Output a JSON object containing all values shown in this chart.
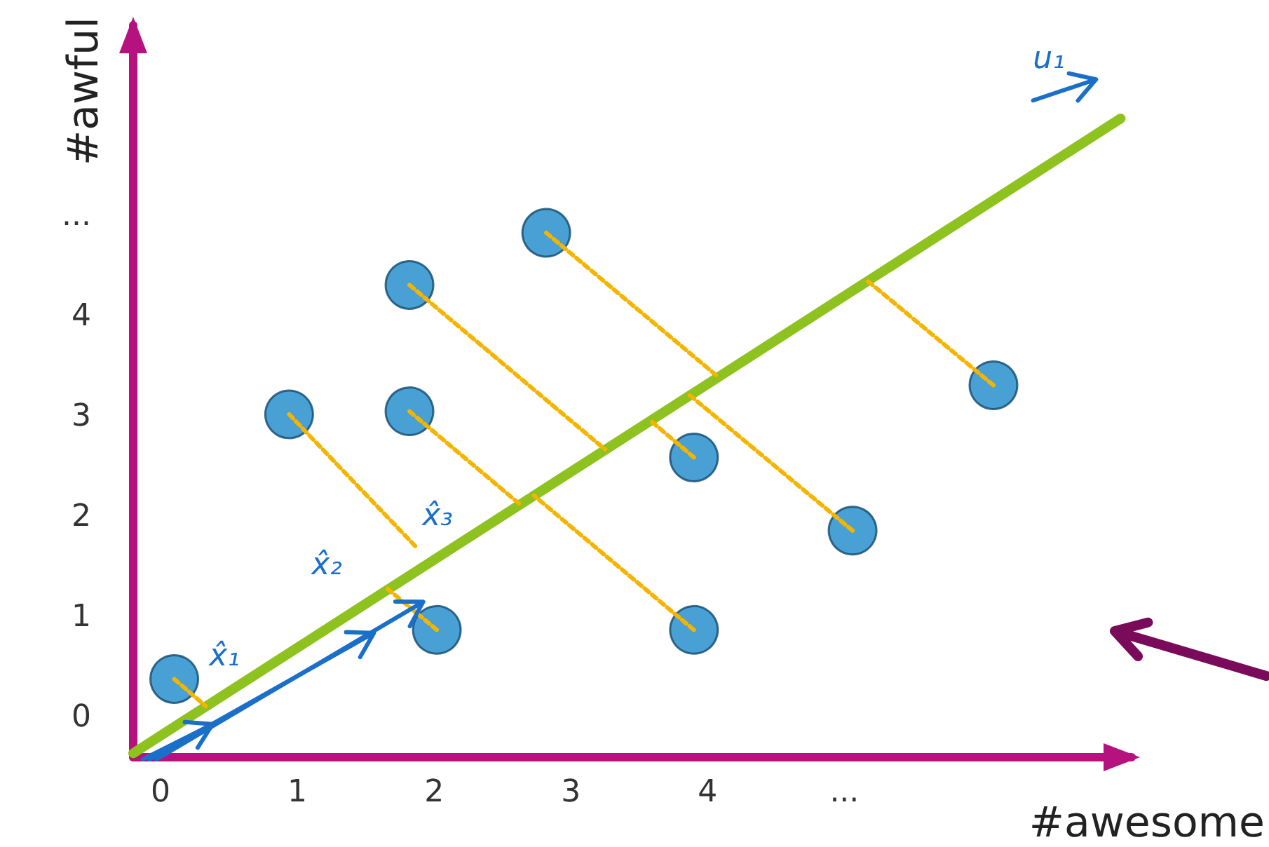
{
  "chart_data": {
    "type": "scatter",
    "xlabel": "#awesome",
    "ylabel": "#awful",
    "xlim": [
      -0.2,
      7.1
    ],
    "ylim": [
      -0.4,
      6.9
    ],
    "xticks": [
      0,
      1,
      2,
      3,
      4,
      {
        "value": 5,
        "label": "..."
      }
    ],
    "yticks": [
      0,
      1,
      2,
      3,
      4,
      {
        "value": 5,
        "label": "..."
      }
    ],
    "grid": false,
    "marker": "circle",
    "annotations": [
      "u₁",
      "x̂₁",
      "x̂₂",
      "x̂₃"
    ],
    "series": [
      {
        "color": "#1a88c9",
        "x": [
          0.1,
          0.94,
          1.82,
          1.82,
          2.02,
          2.82,
          3.9,
          3.9,
          5.06,
          6.09
        ],
        "values": [
          0.38,
          3.02,
          4.31,
          3.05,
          0.87,
          4.83,
          2.59,
          0.87,
          1.86,
          3.31
        ]
      },
      {
        "type": "line",
        "color": "#8dc21f",
        "marker": "none",
        "line_style": "solid",
        "x": [
          -0.2,
          7.02
        ],
        "values": [
          -0.36,
          5.97
        ]
      },
      {
        "type": "line",
        "color": "#f5b400",
        "marker": "none",
        "line_style": "dashed",
        "x": [
          0.1,
          0.33,
          null,
          0.94,
          1.88,
          null,
          1.82,
          3.25,
          null,
          1.82,
          2.63,
          null,
          2.02,
          1.66,
          null,
          2.82,
          4.08,
          null,
          3.9,
          3.58,
          null,
          3.9,
          2.73,
          null,
          5.06,
          3.87,
          null,
          6.09,
          5.17
        ],
        "values": [
          0.38,
          0.11,
          null,
          3.02,
          1.68,
          null,
          4.31,
          2.67,
          null,
          3.05,
          2.12,
          null,
          0.87,
          1.28,
          null,
          4.83,
          3.39,
          null,
          2.59,
          2.96,
          null,
          0.87,
          2.21,
          null,
          1.86,
          3.21,
          null,
          3.31,
          4.35
        ]
      }
    ]
  }
}
